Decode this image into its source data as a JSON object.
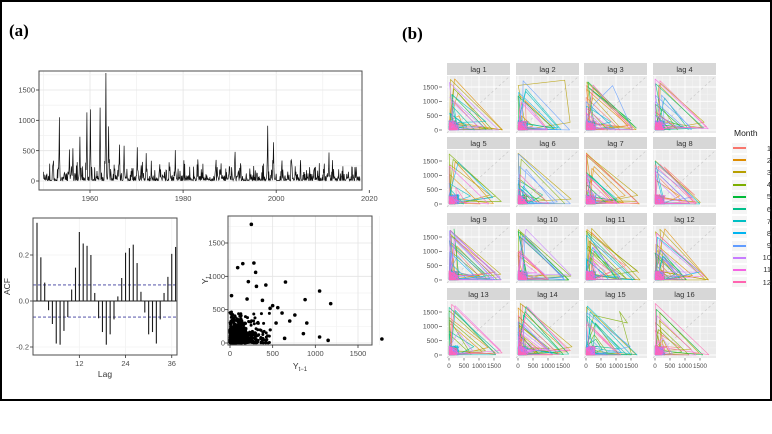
{
  "figure": {
    "panel_a_label": "(a)",
    "panel_b_label": "(b)"
  },
  "colors": {
    "series_black": "#111111",
    "panel_border": "#4d4d4d",
    "axis_text": "#4d4d4d",
    "axis_title": "#333333",
    "grid_major_white_panel": "#e4e4e4",
    "grid_minor_white_panel": "#f2f2f2",
    "facet_panel_bg": "#ebebeb",
    "facet_strip_bg": "#d7d7d7",
    "facet_grid_major": "#ffffff",
    "facet_grid_minor": "#f4f4f4",
    "diagonal_ref": "#c9c9c9",
    "acf_conf_line": "#3b3b9e",
    "outer_border": "#000000"
  },
  "chart_data": [
    {
      "id": "monthly_time_series",
      "type": "line",
      "title": "",
      "xlabel": "",
      "ylabel": "",
      "x_ticks": [
        1960,
        1980,
        2000,
        2020
      ],
      "y_ticks": [
        0,
        500,
        1000,
        1500
      ],
      "x_range": [
        1949,
        2022
      ],
      "y_range": [
        -150,
        1815
      ],
      "typical_value_range": [
        0,
        400
      ],
      "peaks": [
        [
          1953.4,
          1050
        ],
        [
          1955.6,
          520
        ],
        [
          1956.3,
          540
        ],
        [
          1957.8,
          730
        ],
        [
          1959.3,
          1130
        ],
        [
          1960.1,
          1180
        ],
        [
          1962.2,
          1210
        ],
        [
          1963.4,
          1780
        ],
        [
          1964.0,
          900
        ],
        [
          1966.3,
          600
        ],
        [
          1967.3,
          580
        ],
        [
          1970.2,
          555
        ],
        [
          1972.1,
          460
        ],
        [
          1978.3,
          510
        ],
        [
          1991.2,
          480
        ],
        [
          1998.2,
          910
        ],
        [
          1999.4,
          640
        ],
        [
          2011.3,
          470
        ]
      ]
    },
    {
      "id": "acf",
      "type": "bar",
      "xlabel": "Lag",
      "ylabel": "ACF",
      "x_ticks": [
        12,
        24,
        36
      ],
      "y_ticks": [
        -0.2,
        0.0,
        0.2
      ],
      "conf_bounds": [
        -0.07,
        0.07
      ],
      "lag_start": 1,
      "values": [
        0.34,
        0.19,
        0.08,
        -0.04,
        -0.1,
        -0.185,
        -0.19,
        -0.13,
        -0.07,
        0.05,
        0.145,
        0.3,
        0.25,
        0.24,
        0.2,
        0.035,
        -0.075,
        -0.135,
        -0.19,
        -0.145,
        -0.08,
        0.02,
        0.1,
        0.21,
        0.23,
        0.245,
        0.165,
        0.04,
        -0.05,
        -0.145,
        -0.135,
        -0.185,
        -0.08,
        0.035,
        0.105,
        0.205,
        0.235
      ]
    },
    {
      "id": "lag1_scatter",
      "type": "scatter",
      "xlabel_base": "Y",
      "xlabel_sub": "t−1",
      "ylabel_base": "Y",
      "ylabel_sub": "t",
      "x_ticks": [
        0,
        500,
        1000,
        1500
      ],
      "y_ticks": [
        0,
        500,
        1000,
        1500
      ],
      "cluster": {
        "count": 850,
        "value_range": [
          0,
          500
        ]
      },
      "outliers": [
        [
          250,
          1780
        ],
        [
          90,
          1130
        ],
        [
          150,
          1190
        ],
        [
          280,
          1200
        ],
        [
          300,
          1060
        ],
        [
          215,
          920
        ],
        [
          420,
          870
        ],
        [
          650,
          915
        ],
        [
          18,
          710
        ],
        [
          200,
          660
        ],
        [
          880,
          650
        ],
        [
          1050,
          780
        ],
        [
          1180,
          590
        ],
        [
          310,
          850
        ],
        [
          500,
          560
        ],
        [
          560,
          530
        ],
        [
          610,
          450
        ],
        [
          760,
          420
        ],
        [
          380,
          640
        ],
        [
          700,
          330
        ],
        [
          900,
          300
        ],
        [
          860,
          140
        ],
        [
          1050,
          90
        ],
        [
          1150,
          40
        ],
        [
          1780,
          60
        ],
        [
          640,
          70
        ],
        [
          470,
          520
        ],
        [
          540,
          300
        ]
      ]
    },
    {
      "id": "lag_facet_grid",
      "type": "line",
      "facets": [
        "lag 1",
        "lag 2",
        "lag 3",
        "lag 4",
        "lag 5",
        "lag 6",
        "lag 7",
        "lag 8",
        "lag 9",
        "lag 10",
        "lag 11",
        "lag 12",
        "lag 13",
        "lag 14",
        "lag 15",
        "lag 16"
      ],
      "x_ticks": [
        0,
        500,
        1000,
        1500
      ],
      "y_ticks": [
        0,
        500,
        1000,
        1500
      ],
      "value_range": [
        0,
        1800
      ],
      "legend_title": "Month",
      "months": [
        {
          "label": "1",
          "color": "#F8766D"
        },
        {
          "label": "2",
          "color": "#DE8C00"
        },
        {
          "label": "3",
          "color": "#B79F00"
        },
        {
          "label": "4",
          "color": "#7CAE00"
        },
        {
          "label": "5",
          "color": "#00BA38"
        },
        {
          "label": "6",
          "color": "#00C08B"
        },
        {
          "label": "7",
          "color": "#00BFC4"
        },
        {
          "label": "8",
          "color": "#00B4F0"
        },
        {
          "label": "9",
          "color": "#619CFF"
        },
        {
          "label": "10",
          "color": "#C77CFF"
        },
        {
          "label": "11",
          "color": "#F564E3"
        },
        {
          "label": "12",
          "color": "#FF64B0"
        }
      ]
    }
  ]
}
